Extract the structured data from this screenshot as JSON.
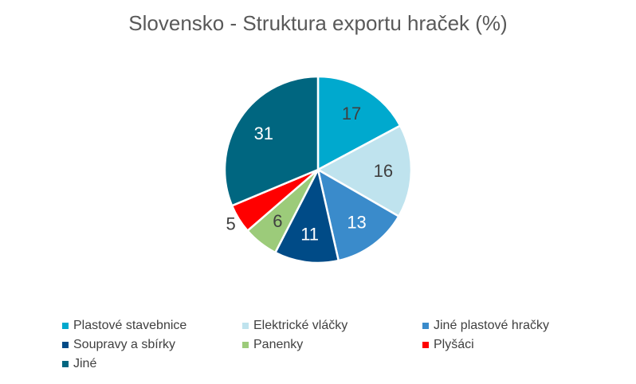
{
  "chart_data": {
    "type": "pie",
    "title": "Slovensko - Struktura exportu hraček (%)",
    "categories": [
      "Plastové stavebnice",
      "Elektrické vláčky",
      "Jiné plastové hračky",
      "Soupravy a sbírky",
      "Panenky",
      "Plyšáci",
      "Jiné"
    ],
    "values": [
      17,
      16,
      13,
      11,
      6,
      5,
      31
    ],
    "colors": [
      "#00A9CE",
      "#BFE3EE",
      "#3A8BCB",
      "#004B87",
      "#9CCB7A",
      "#FF0000",
      "#006680"
    ],
    "labels": [
      "17",
      "16",
      "13",
      "11",
      "6",
      "5",
      "31"
    ],
    "legend_position": "bottom"
  }
}
